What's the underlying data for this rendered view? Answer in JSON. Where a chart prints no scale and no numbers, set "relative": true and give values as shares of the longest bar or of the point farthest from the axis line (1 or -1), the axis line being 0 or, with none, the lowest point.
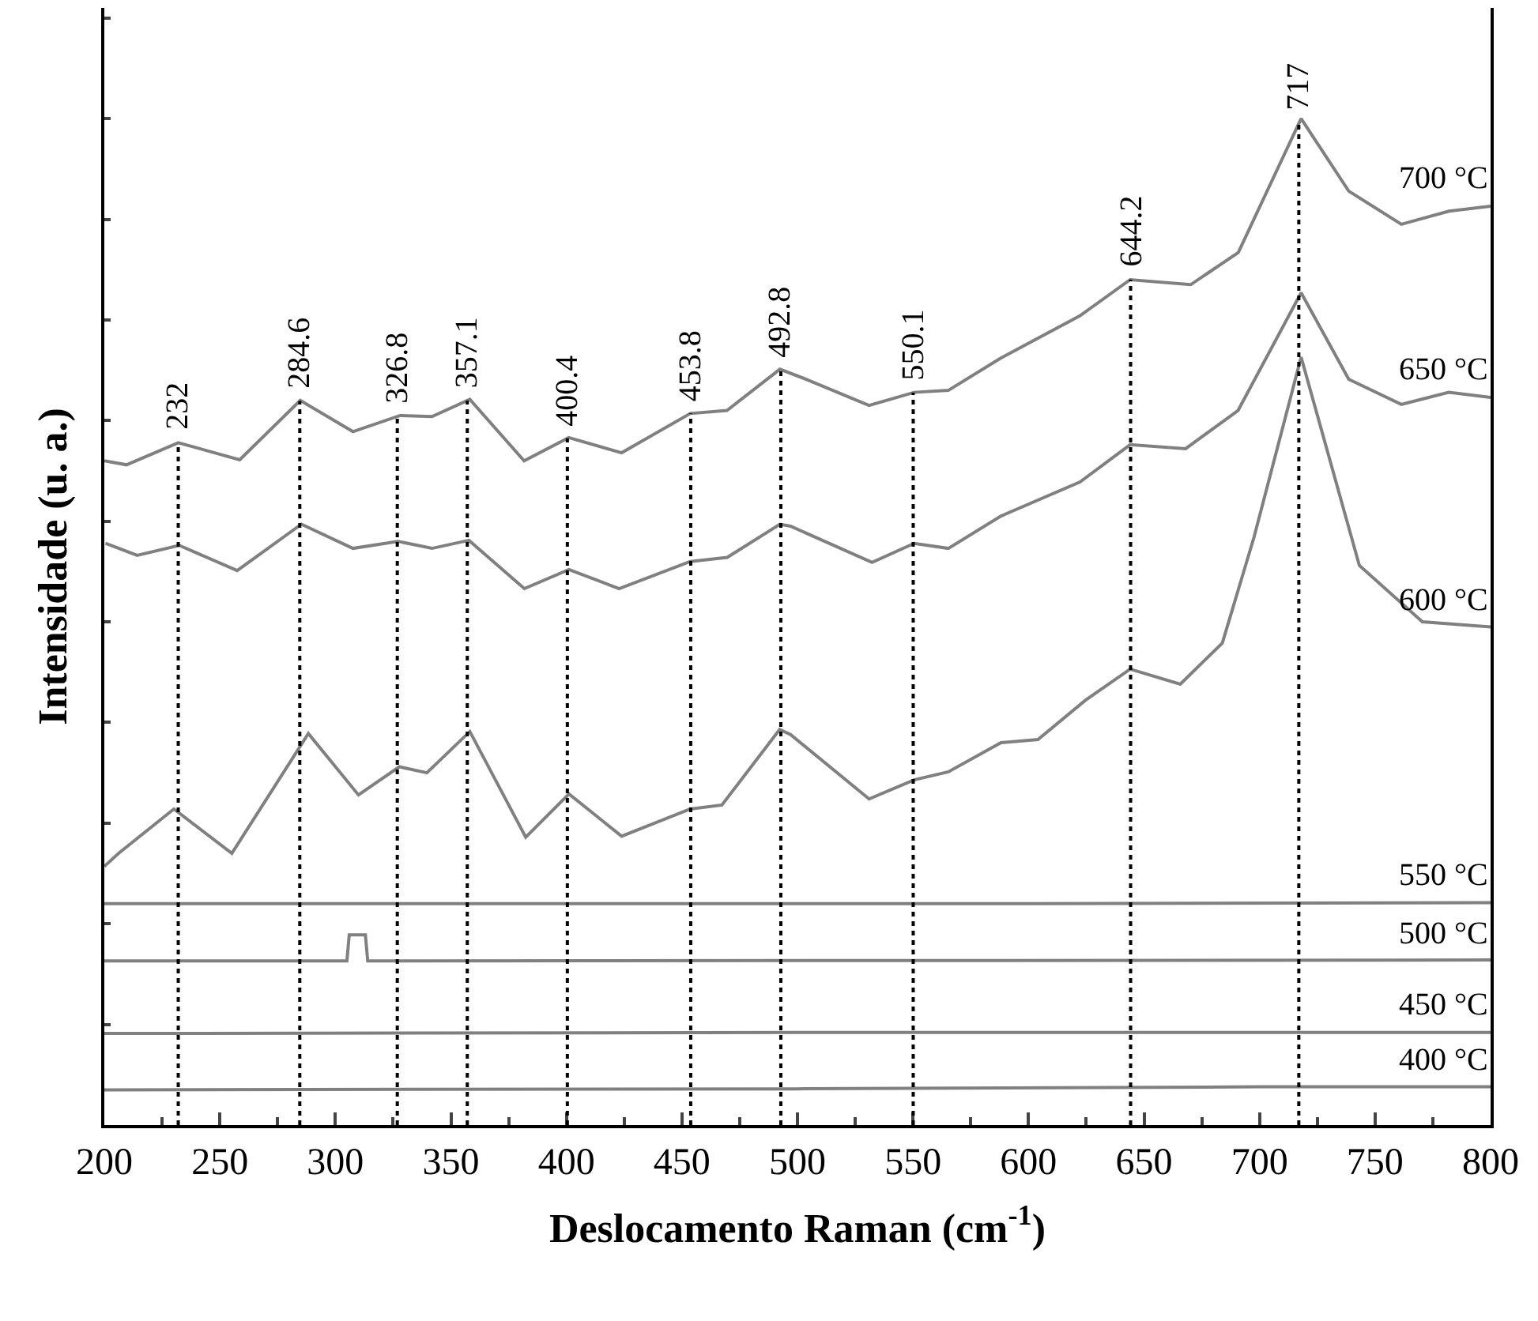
{
  "chart_data": {
    "type": "line",
    "relative": true,
    "xlabel": "Deslocamento Raman (cm$^{-1}$)",
    "ylabel": "Intensidade (u. a.)",
    "xlim": [
      200,
      800
    ],
    "xticks": [
      200,
      250,
      300,
      350,
      400,
      450,
      500,
      550,
      600,
      650,
      700,
      750,
      800
    ],
    "legend": false,
    "grid": false,
    "marker": "none",
    "line_style": "solid",
    "series": [
      {
        "name": "700 °C",
        "color": "#808080",
        "x": [
          200,
          209.6,
          232,
          258.6,
          284.8,
          307.6,
          328,
          341.8,
          358.2,
          381.7,
          401,
          423.9,
          453.6,
          469.5,
          492.4,
          503.8,
          531,
          550.5,
          565.3,
          588,
          622.2,
          644,
          670.2,
          690.8,
          718,
          738.6,
          761.4,
          782,
          800
        ],
        "values": [
          0.66,
          0.656,
          0.678,
          0.661,
          0.72,
          0.689,
          0.705,
          0.704,
          0.721,
          0.66,
          0.683,
          0.668,
          0.707,
          0.71,
          0.751,
          0.741,
          0.715,
          0.728,
          0.73,
          0.762,
          0.804,
          0.84,
          0.835,
          0.867,
          1,
          0.928,
          0.895,
          0.908,
          0.913
        ]
      },
      {
        "name": "650 °C",
        "color": "#808080",
        "x": [
          200.5,
          214.2,
          232.4,
          257.5,
          285.3,
          307.6,
          327,
          341.8,
          357.8,
          381.8,
          401.1,
          422.8,
          453.6,
          469.6,
          492.4,
          497,
          532.3,
          550.5,
          565.3,
          588,
          622.3,
          644,
          668,
          690.7,
          718,
          738.6,
          761.4,
          781.9,
          800
        ],
        "values": [
          0.578,
          0.566,
          0.576,
          0.551,
          0.597,
          0.573,
          0.58,
          0.573,
          0.581,
          0.533,
          0.552,
          0.533,
          0.56,
          0.564,
          0.597,
          0.595,
          0.559,
          0.578,
          0.573,
          0.605,
          0.639,
          0.676,
          0.672,
          0.71,
          0.827,
          0.741,
          0.716,
          0.728,
          0.723
        ]
      },
      {
        "name": "600 °C",
        "color": "#808080",
        "x": [
          200,
          206.2,
          230.1,
          255.2,
          288.3,
          310,
          327.7,
          339.6,
          358.2,
          382.4,
          401.1,
          423.9,
          453.6,
          467.3,
          492.3,
          497,
          531,
          550.5,
          565.3,
          588.1,
          604.1,
          624.6,
          644,
          665.7,
          683.9,
          697.6,
          718,
          743.2,
          770.5,
          800
        ],
        "values": [
          0.257,
          0.27,
          0.314,
          0.27,
          0.389,
          0.328,
          0.356,
          0.35,
          0.391,
          0.286,
          0.329,
          0.287,
          0.314,
          0.318,
          0.393,
          0.388,
          0.324,
          0.343,
          0.351,
          0.38,
          0.383,
          0.422,
          0.453,
          0.438,
          0.479,
          0.584,
          0.763,
          0.556,
          0.5,
          0.495
        ]
      },
      {
        "name": "550 °C",
        "color": "#808080",
        "x": [
          200,
          400,
          600,
          800
        ],
        "values": [
          0.22,
          0.22,
          0.22,
          0.221
        ]
      },
      {
        "name": "500 °C",
        "color": "#808080",
        "x": [
          200,
          305,
          306,
          313,
          314,
          800
        ],
        "values": [
          0.163,
          0.163,
          0.189,
          0.189,
          0.163,
          0.164
        ]
      },
      {
        "name": "450 °C",
        "color": "#808080",
        "x": [
          200,
          500,
          800
        ],
        "values": [
          0.091,
          0.092,
          0.092
        ]
      },
      {
        "name": "400 °C",
        "color": "#808080",
        "x": [
          200,
          500,
          700,
          800
        ],
        "values": [
          0.035,
          0.036,
          0.038,
          0.038
        ]
      }
    ],
    "ref_lines": [
      {
        "axis": "x",
        "value": 232,
        "label": "232",
        "color": "#000000",
        "line_style": "dotted"
      },
      {
        "axis": "x",
        "value": 284.6,
        "label": "284.6",
        "color": "#000000",
        "line_style": "dotted"
      },
      {
        "axis": "x",
        "value": 326.8,
        "label": "326.8",
        "color": "#000000",
        "line_style": "dotted"
      },
      {
        "axis": "x",
        "value": 357.1,
        "label": "357.1",
        "color": "#000000",
        "line_style": "dotted"
      },
      {
        "axis": "x",
        "value": 400.4,
        "label": "400.4",
        "color": "#000000",
        "line_style": "dotted"
      },
      {
        "axis": "x",
        "value": 453.8,
        "label": "453.8",
        "color": "#000000",
        "line_style": "dotted"
      },
      {
        "axis": "x",
        "value": 492.8,
        "label": "492.8",
        "color": "#000000",
        "line_style": "dotted"
      },
      {
        "axis": "x",
        "value": 550.1,
        "label": "550.1",
        "color": "#000000",
        "line_style": "dotted"
      },
      {
        "axis": "x",
        "value": 644.2,
        "label": "644.2",
        "color": "#000000",
        "line_style": "dotted"
      },
      {
        "axis": "x",
        "value": 717,
        "label": "717",
        "color": "#000000",
        "line_style": "dotted"
      }
    ]
  }
}
